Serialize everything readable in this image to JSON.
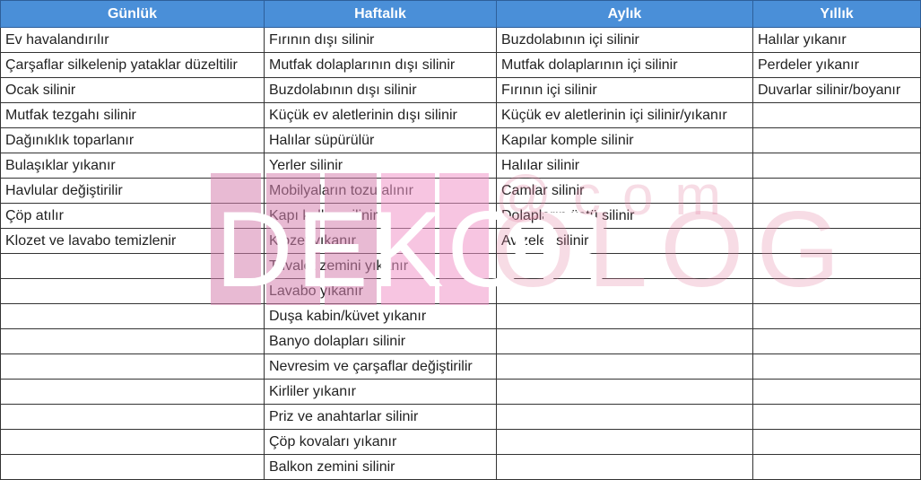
{
  "columns": [
    "Günlük",
    "Haftalık",
    "Aylık",
    "Yıllık"
  ],
  "rows": [
    [
      "Ev havalandırılır",
      "Fırının dışı silinir",
      "Buzdolabının içi silinir",
      "Halılar yıkanır"
    ],
    [
      "Çarşaflar silkelenip yataklar düzeltilir",
      "Mutfak dolaplarının dışı silinir",
      "Mutfak dolaplarının içi silinir",
      "Perdeler yıkanır"
    ],
    [
      "Ocak silinir",
      "Buzdolabının dışı silinir",
      "Fırının içi silinir",
      "Duvarlar silinir/boyanır"
    ],
    [
      "Mutfak tezgahı silinir",
      "Küçük ev aletlerinin dışı silinir",
      "Küçük ev aletlerinin içi silinir/yıkanır",
      ""
    ],
    [
      "Dağınıklık toparlanır",
      "Halılar süpürülür",
      "Kapılar komple silinir",
      ""
    ],
    [
      "Bulaşıklar yıkanır",
      "Yerler silinir",
      "Halılar silinir",
      ""
    ],
    [
      "Havlular değiştirilir",
      "Mobilyaların tozu alınır",
      "Camlar silinir",
      ""
    ],
    [
      "Çöp atılır",
      "Kapı kolları silinir",
      "Dolapların üstü silinir",
      ""
    ],
    [
      "Klozet ve lavabo temizlenir",
      "Klozet yıkanır",
      "Avizeler silinir",
      ""
    ],
    [
      "",
      "Tuvalet zemini yıkanır",
      "",
      ""
    ],
    [
      "",
      "Lavabo yıkanır",
      "",
      ""
    ],
    [
      "",
      "Duşa kabin/küvet yıkanır",
      "",
      ""
    ],
    [
      "",
      "Banyo dolapları silinir",
      "",
      ""
    ],
    [
      "",
      "Nevresim ve çarşaflar değiştirilir",
      "",
      ""
    ],
    [
      "",
      "Kirliler yıkanır",
      "",
      ""
    ],
    [
      "",
      "Priz ve anahtarlar silinir",
      "",
      ""
    ],
    [
      "",
      "Çöp kovaları yıkanır",
      "",
      ""
    ],
    [
      "",
      "Balkon zemini silinir",
      "",
      ""
    ]
  ],
  "watermark": {
    "left": "DEKOR",
    "right": "OLOG",
    "suffix": "@com"
  },
  "colors": {
    "header_bg": "#4a8fd8",
    "header_text": "#ffffff",
    "watermark": "#d682af"
  }
}
